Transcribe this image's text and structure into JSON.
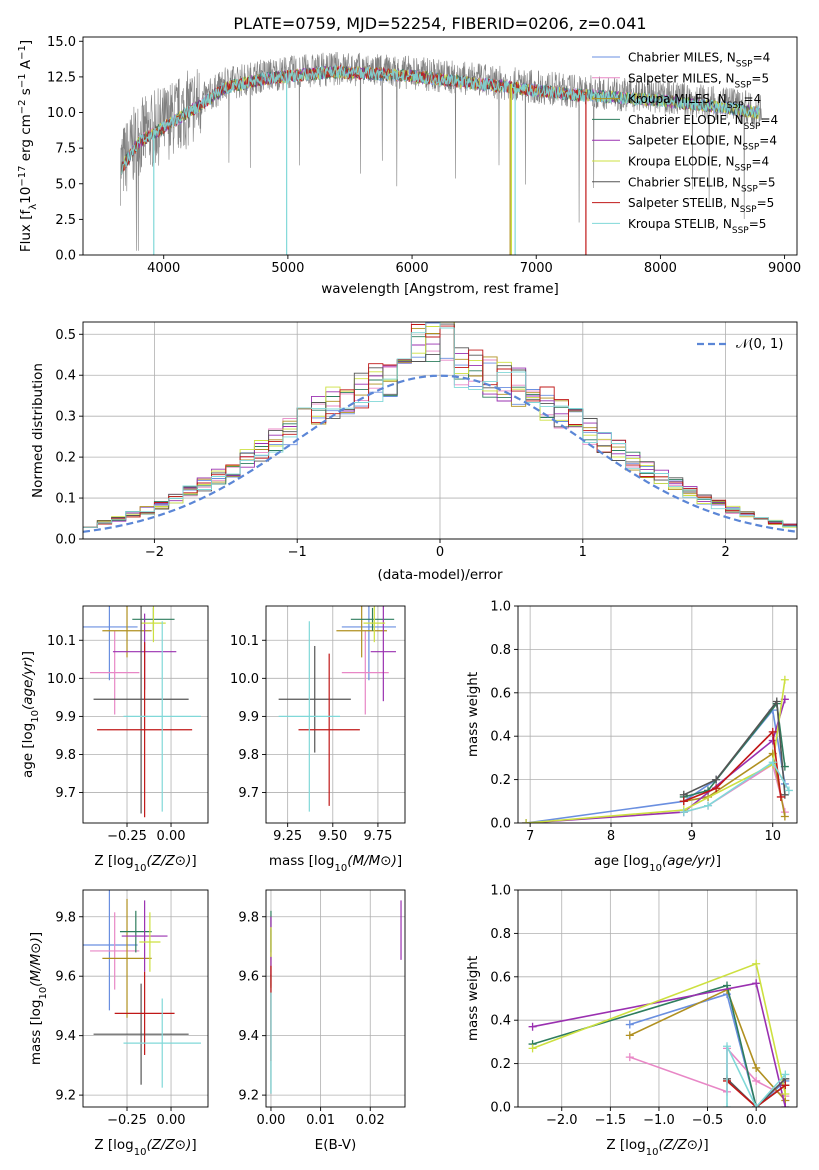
{
  "figure": {
    "title": "PLATE=0759, MJD=52254, FIBERID=0206, z=0.041"
  },
  "models": [
    {
      "name": "Chabrier MILES, N",
      "sub": "SSP",
      "eq": "=4",
      "color": "#6a8fe0"
    },
    {
      "name": "Salpeter MILES, N",
      "sub": "SSP",
      "eq": "=5",
      "color": "#e887c6"
    },
    {
      "name": "Kroupa MILES, N",
      "sub": "SSP",
      "eq": "=4",
      "color": "#b09020"
    },
    {
      "name": "Chabrier ELODIE, N",
      "sub": "SSP",
      "eq": "=4",
      "color": "#2e7d5e"
    },
    {
      "name": "Salpeter ELODIE, N",
      "sub": "SSP",
      "eq": "=4",
      "color": "#9a30b0"
    },
    {
      "name": "Kroupa ELODIE, N",
      "sub": "SSP",
      "eq": "=4",
      "color": "#cde040"
    },
    {
      "name": "Chabrier STELIB, N",
      "sub": "SSP",
      "eq": "=5",
      "color": "#555555"
    },
    {
      "name": "Salpeter STELIB, N",
      "sub": "SSP",
      "eq": "=5",
      "color": "#c01818"
    },
    {
      "name": "Kroupa STELIB, N",
      "sub": "SSP",
      "eq": "=5",
      "color": "#80d8d8"
    }
  ],
  "chart_data": [
    {
      "id": "spectrum",
      "type": "line",
      "xlabel": "wavelength [Angstrom, rest frame]",
      "ylabel_parts": [
        "Flux [f",
        "λ",
        "10",
        "−17",
        " erg cm",
        "−2",
        " s",
        "−1",
        " A",
        "−1",
        "]"
      ],
      "xlim": [
        3350,
        9100
      ],
      "ylim": [
        0,
        15.3
      ],
      "xticks": [
        4000,
        5000,
        6000,
        7000,
        8000,
        9000
      ],
      "yticks": [
        0.0,
        2.5,
        5.0,
        7.5,
        10.0,
        12.5,
        15.0
      ],
      "ytick_labels": [
        "0.0",
        "2.5",
        "5.0",
        "7.5",
        "10.0",
        "12.5",
        "15.0"
      ],
      "data_color": "#808080",
      "envelope": {
        "x": [
          3650,
          3800,
          4000,
          4300,
          4500,
          4800,
          5000,
          5400,
          6000,
          6500,
          7000,
          7300,
          7500,
          8000,
          8500,
          8820
        ],
        "y": [
          6.2,
          8.2,
          9.2,
          10.8,
          12.0,
          12.6,
          12.8,
          13.1,
          12.8,
          12.3,
          11.8,
          11.5,
          11.4,
          11.1,
          10.6,
          10.2
        ]
      },
      "model_gaps": [
        {
          "model": 8,
          "x": 4990,
          "ymin": 0
        },
        {
          "model": 7,
          "x": 7400,
          "ymin": 0
        },
        {
          "model": 2,
          "x": 6790,
          "ymin": 0
        },
        {
          "model": 5,
          "x": 6800,
          "ymin": 0
        },
        {
          "model": 8,
          "x": 6830,
          "ymin": 0
        },
        {
          "model": 8,
          "x": 3920,
          "ymin": 0
        }
      ]
    },
    {
      "id": "residuals",
      "type": "histogram",
      "xlabel": "(data-model)/error",
      "ylabel": "Normed distribution",
      "xlim": [
        -2.5,
        2.5
      ],
      "ylim": [
        0,
        0.53
      ],
      "xticks": [
        -2,
        -1,
        0,
        1,
        2
      ],
      "xtick_labels": [
        "−2",
        "−1",
        "0",
        "1",
        "2"
      ],
      "yticks": [
        0.0,
        0.1,
        0.2,
        0.3,
        0.4,
        0.5
      ],
      "ytick_labels": [
        "0.0",
        "0.1",
        "0.2",
        "0.3",
        "0.4",
        "0.5"
      ],
      "bin_width": 0.1,
      "reference": {
        "name": "𝒩(0, 1)",
        "color": "#5b86d6"
      }
    },
    {
      "id": "age_vs_Z",
      "type": "scatter",
      "xlabel": "Z [log10(Z/Z⊙)]",
      "ylabel": "age  [log10(age/yr)]",
      "xlim": [
        -0.5,
        0.21
      ],
      "ylim": [
        9.62,
        10.19
      ],
      "xticks": [
        -0.25,
        0.0
      ],
      "xtick_labels": [
        "−0.25",
        "0.00"
      ],
      "yticks": [
        9.7,
        9.8,
        9.9,
        10.0,
        10.1
      ],
      "ytick_labels": [
        "9.7",
        "9.8",
        "9.9",
        "10.0",
        "10.1"
      ],
      "points": [
        {
          "m": 0,
          "x": -0.35,
          "y": 10.135,
          "xerr": 0.16,
          "yerr": 0.14
        },
        {
          "m": 1,
          "x": -0.32,
          "y": 10.015,
          "xerr": 0.14,
          "yerr": 0.11
        },
        {
          "m": 2,
          "x": -0.25,
          "y": 10.125,
          "xerr": 0.14,
          "yerr": 0.07
        },
        {
          "m": 3,
          "x": -0.1,
          "y": 10.155,
          "xerr": 0.12,
          "yerr": 0.03
        },
        {
          "m": 4,
          "x": -0.15,
          "y": 10.07,
          "xerr": 0.18,
          "yerr": 0.1
        },
        {
          "m": 5,
          "x": -0.1,
          "y": 10.145,
          "xerr": 0.07,
          "yerr": 0.05
        },
        {
          "m": 6,
          "x": -0.17,
          "y": 9.945,
          "xerr": 0.27,
          "yerr": 0.3
        },
        {
          "m": 7,
          "x": -0.15,
          "y": 9.865,
          "xerr": 0.27,
          "yerr": 0.23
        },
        {
          "m": 8,
          "x": -0.05,
          "y": 9.9,
          "xerr": 0.22,
          "yerr": 0.25
        }
      ]
    },
    {
      "id": "age_vs_mass",
      "type": "scatter",
      "xlabel": "mass [log10(M/M⊙)]",
      "ylabel": "",
      "xlim": [
        9.13,
        9.9
      ],
      "ylim": [
        9.62,
        10.19
      ],
      "xticks": [
        9.25,
        9.5,
        9.75
      ],
      "xtick_labels": [
        "9.25",
        "9.50",
        "9.75"
      ],
      "yticks": [
        9.7,
        9.8,
        9.9,
        10.0,
        10.1
      ],
      "ytick_labels": [
        "9.7",
        "9.8",
        "9.9",
        "10.0",
        "10.1"
      ],
      "points": [
        {
          "m": 0,
          "x": 9.7,
          "y": 10.135,
          "xerr": 0.15,
          "yerr": 0.14
        },
        {
          "m": 1,
          "x": 9.68,
          "y": 10.015,
          "xerr": 0.13,
          "yerr": 0.11
        },
        {
          "m": 2,
          "x": 9.66,
          "y": 10.125,
          "xerr": 0.14,
          "yerr": 0.07
        },
        {
          "m": 3,
          "x": 9.72,
          "y": 10.155,
          "xerr": 0.12,
          "yerr": 0.03
        },
        {
          "m": 4,
          "x": 9.78,
          "y": 10.07,
          "xerr": 0.07,
          "yerr": 0.13
        },
        {
          "m": 5,
          "x": 9.73,
          "y": 10.145,
          "xerr": 0.06,
          "yerr": 0.05
        },
        {
          "m": 6,
          "x": 9.4,
          "y": 9.945,
          "xerr": 0.2,
          "yerr": 0.14
        },
        {
          "m": 7,
          "x": 9.48,
          "y": 9.865,
          "xerr": 0.17,
          "yerr": 0.2
        },
        {
          "m": 8,
          "x": 9.37,
          "y": 9.9,
          "xerr": 0.17,
          "yerr": 0.25
        }
      ]
    },
    {
      "id": "weight_vs_age",
      "type": "line",
      "xlabel": "age  [log10(age/yr)]",
      "ylabel": "mass weight",
      "xlim": [
        6.85,
        10.3
      ],
      "ylim": [
        0,
        1.0
      ],
      "xticks": [
        7,
        8,
        9,
        10
      ],
      "xtick_labels": [
        "7",
        "8",
        "9",
        "10"
      ],
      "yticks": [
        0.0,
        0.2,
        0.4,
        0.6,
        0.8,
        1.0
      ],
      "ytick_labels": [
        "0.0",
        "0.2",
        "0.4",
        "0.6",
        "0.8",
        "1.0"
      ],
      "series": [
        {
          "m": 0,
          "x": [
            6.95,
            8.9,
            9.3,
            10.0,
            10.15
          ],
          "y": [
            0.0,
            0.1,
            0.2,
            0.52,
            0.18
          ]
        },
        {
          "m": 1,
          "x": [
            8.9,
            9.2,
            10.0,
            10.15
          ],
          "y": [
            0.05,
            0.08,
            0.27,
            0.05
          ]
        },
        {
          "m": 2,
          "x": [
            8.9,
            9.2,
            10.0,
            10.15
          ],
          "y": [
            0.1,
            0.12,
            0.32,
            0.03
          ]
        },
        {
          "m": 3,
          "x": [
            8.9,
            9.2,
            10.05,
            10.15
          ],
          "y": [
            0.12,
            0.15,
            0.55,
            0.26
          ]
        },
        {
          "m": 4,
          "x": [
            6.95,
            8.9,
            10.0,
            10.15
          ],
          "y": [
            0.0,
            0.05,
            0.38,
            0.57
          ]
        },
        {
          "m": 5,
          "x": [
            6.95,
            8.9,
            10.0,
            10.15
          ],
          "y": [
            0.0,
            0.06,
            0.27,
            0.66
          ]
        },
        {
          "m": 6,
          "x": [
            8.9,
            9.3,
            10.05,
            10.15
          ],
          "y": [
            0.13,
            0.2,
            0.56,
            0.13
          ]
        },
        {
          "m": 7,
          "x": [
            8.9,
            9.3,
            10.0,
            10.1
          ],
          "y": [
            0.1,
            0.16,
            0.42,
            0.12
          ]
        },
        {
          "m": 8,
          "x": [
            8.9,
            9.2,
            10.0,
            10.2
          ],
          "y": [
            0.05,
            0.08,
            0.28,
            0.15
          ]
        }
      ]
    },
    {
      "id": "mass_vs_Z",
      "type": "scatter",
      "xlabel": "Z [log10(Z/Z⊙)]",
      "ylabel": "mass [log10(M/M⊙)]",
      "xlim": [
        -0.5,
        0.21
      ],
      "ylim": [
        9.16,
        9.89
      ],
      "xticks": [
        -0.25,
        0.0
      ],
      "xtick_labels": [
        "−0.25",
        "0.00"
      ],
      "yticks": [
        9.2,
        9.4,
        9.6,
        9.8
      ],
      "ytick_labels": [
        "9.2",
        "9.4",
        "9.6",
        "9.8"
      ],
      "points": [
        {
          "m": 0,
          "x": -0.35,
          "y": 9.705,
          "xerr": 0.16,
          "yerr": 0.22
        },
        {
          "m": 1,
          "x": -0.32,
          "y": 9.685,
          "xerr": 0.14,
          "yerr": 0.13
        },
        {
          "m": 2,
          "x": -0.25,
          "y": 9.66,
          "xerr": 0.14,
          "yerr": 0.2
        },
        {
          "m": 3,
          "x": -0.2,
          "y": 9.75,
          "xerr": 0.09,
          "yerr": 0.07
        },
        {
          "m": 4,
          "x": -0.15,
          "y": 9.735,
          "xerr": 0.13,
          "yerr": 0.12
        },
        {
          "m": 5,
          "x": -0.12,
          "y": 9.715,
          "xerr": 0.06,
          "yerr": 0.1
        },
        {
          "m": 6,
          "x": -0.17,
          "y": 9.405,
          "xerr": 0.27,
          "yerr": 0.17
        },
        {
          "m": 7,
          "x": -0.15,
          "y": 9.475,
          "xerr": 0.17,
          "yerr": 0.14
        },
        {
          "m": 8,
          "x": -0.05,
          "y": 9.375,
          "xerr": 0.22,
          "yerr": 0.15
        }
      ]
    },
    {
      "id": "mass_vs_EBV",
      "type": "scatter",
      "xlabel": "E(B-V)",
      "ylabel": "",
      "xlim": [
        -0.001,
        0.027
      ],
      "ylim": [
        9.16,
        9.89
      ],
      "xticks": [
        0.0,
        0.01,
        0.02
      ],
      "xtick_labels": [
        "0.00",
        "0.01",
        "0.02"
      ],
      "yticks": [
        9.2,
        9.4,
        9.6,
        9.8
      ],
      "ytick_labels": [
        "9.2",
        "9.4",
        "9.6",
        "9.8"
      ],
      "points": [
        {
          "m": 0,
          "x": 0.0,
          "y": 9.705,
          "yerr": 0.05
        },
        {
          "m": 1,
          "x": 0.0,
          "y": 9.685,
          "yerr": 0.12
        },
        {
          "m": 2,
          "x": 0.0,
          "y": 9.66,
          "yerr": 0.1
        },
        {
          "m": 3,
          "x": 0.0,
          "y": 9.75,
          "yerr": 0.07
        },
        {
          "m": 4,
          "x": 0.0,
          "y": 9.7,
          "yerr": 0.1
        },
        {
          "m": 5,
          "x": 0.0,
          "y": 9.715,
          "yerr": 0.05
        },
        {
          "m": 6,
          "x": 0.0,
          "y": 9.405,
          "yerr": 0.2
        },
        {
          "m": 7,
          "x": 0.0,
          "y": 9.475,
          "yerr": 0.16
        },
        {
          "m": 8,
          "x": 0.0,
          "y": 9.375,
          "yerr": 0.17
        },
        {
          "m": 4,
          "x": 0.0262,
          "y": 9.755,
          "yerr": 0.1
        }
      ]
    },
    {
      "id": "weight_vs_Z",
      "type": "line",
      "xlabel": "Z [log10(Z/Z⊙)]",
      "ylabel": "mass weight",
      "xlim": [
        -2.45,
        0.42
      ],
      "ylim": [
        0,
        1.0
      ],
      "xticks": [
        -2.0,
        -1.5,
        -1.0,
        -0.5,
        0.0
      ],
      "xtick_labels": [
        "−2.0",
        "−1.5",
        "−1.0",
        "−0.5",
        "0.0"
      ],
      "yticks": [
        0.0,
        0.2,
        0.4,
        0.6,
        0.8,
        1.0
      ],
      "ytick_labels": [
        "0.0",
        "0.2",
        "0.4",
        "0.6",
        "0.8",
        "1.0"
      ],
      "series": [
        {
          "m": 0,
          "x": [
            -1.3,
            -0.3,
            0.0,
            0.3
          ],
          "y": [
            0.38,
            0.52,
            0.0,
            0.12
          ]
        },
        {
          "m": 1,
          "x": [
            -1.3,
            -0.3,
            -0.3,
            0.0,
            0.3
          ],
          "y": [
            0.23,
            0.07,
            0.27,
            0.12,
            0.05
          ]
        },
        {
          "m": 2,
          "x": [
            -1.3,
            -0.3,
            0.0,
            0.3
          ],
          "y": [
            0.33,
            0.54,
            0.18,
            0.03
          ]
        },
        {
          "m": 3,
          "x": [
            -2.3,
            -0.3,
            0.0,
            0.3
          ],
          "y": [
            0.29,
            0.56,
            0.0,
            0.1
          ]
        },
        {
          "m": 4,
          "x": [
            -2.3,
            0.0,
            0.3
          ],
          "y": [
            0.37,
            0.57,
            0.0
          ]
        },
        {
          "m": 5,
          "x": [
            -2.3,
            0.0,
            0.3
          ],
          "y": [
            0.27,
            0.66,
            0.06
          ]
        },
        {
          "m": 6,
          "x": [
            -0.3,
            0.0,
            0.3
          ],
          "y": [
            0.13,
            0.0,
            0.13
          ]
        },
        {
          "m": 7,
          "x": [
            -0.3,
            0.0,
            0.3
          ],
          "y": [
            0.12,
            0.0,
            0.1
          ]
        },
        {
          "m": 8,
          "x": [
            -0.3,
            -0.3,
            0.0,
            0.3
          ],
          "y": [
            0.0,
            0.28,
            0.0,
            0.15
          ]
        }
      ]
    }
  ]
}
